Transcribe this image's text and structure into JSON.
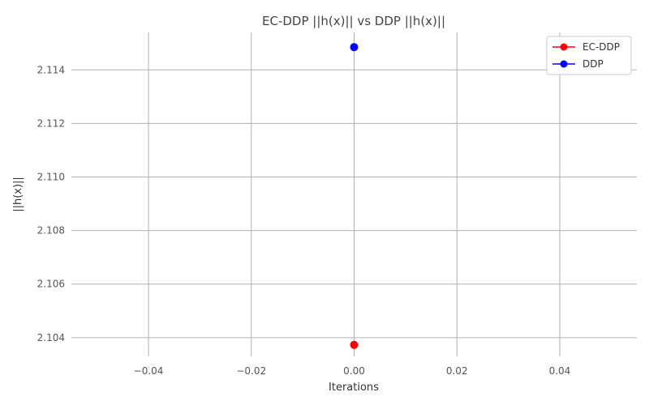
{
  "chart_data": {
    "type": "scatter",
    "title": "EC-DDP ||h(x)|| vs DDP ||h(x)||",
    "xlabel": "Iterations",
    "ylabel": "||h(x)||",
    "xlim": [
      -0.055,
      0.055
    ],
    "ylim": [
      2.1033,
      2.1154
    ],
    "xticks": [
      -0.04,
      -0.02,
      0.0,
      0.02,
      0.04
    ],
    "xtick_labels": [
      "−0.04",
      "−0.02",
      "0.00",
      "0.02",
      "0.04"
    ],
    "yticks": [
      2.104,
      2.106,
      2.108,
      2.11,
      2.112,
      2.114
    ],
    "ytick_labels": [
      "2.104",
      "2.106",
      "2.108",
      "2.110",
      "2.112",
      "2.114"
    ],
    "grid": true,
    "legend_position": "top-right",
    "series": [
      {
        "name": "EC-DDP",
        "color": "#ff0000",
        "x": [
          0
        ],
        "y": [
          2.10373
        ]
      },
      {
        "name": "DDP",
        "color": "#0000ff",
        "x": [
          0
        ],
        "y": [
          2.11485
        ]
      }
    ],
    "axes_color": "#ffffff",
    "grid_color": "#b0b0b0"
  }
}
